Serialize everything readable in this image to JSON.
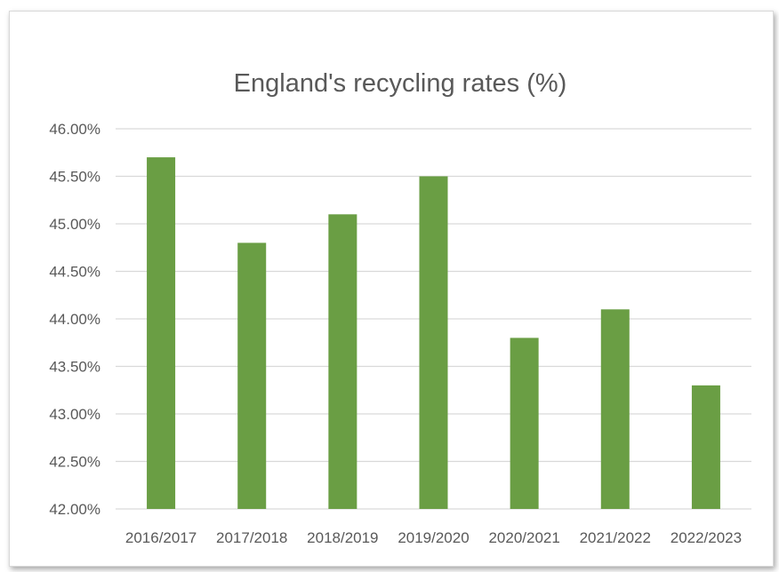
{
  "chart_data": {
    "type": "bar",
    "title": "England's recycling rates (%)",
    "categories": [
      "2016/2017",
      "2017/2018",
      "2018/2019",
      "2019/2020",
      "2020/2021",
      "2021/2022",
      "2022/2023"
    ],
    "values": [
      45.7,
      44.8,
      45.1,
      45.5,
      43.8,
      44.1,
      43.3
    ],
    "ylim": [
      42,
      46
    ],
    "yticks": [
      "42.00%",
      "42.50%",
      "43.00%",
      "43.50%",
      "44.00%",
      "44.50%",
      "45.00%",
      "45.50%",
      "46.00%"
    ],
    "grid": true,
    "legend": "none",
    "bar_color": "#6a9e44",
    "grid_color": "#d9d9d9"
  }
}
